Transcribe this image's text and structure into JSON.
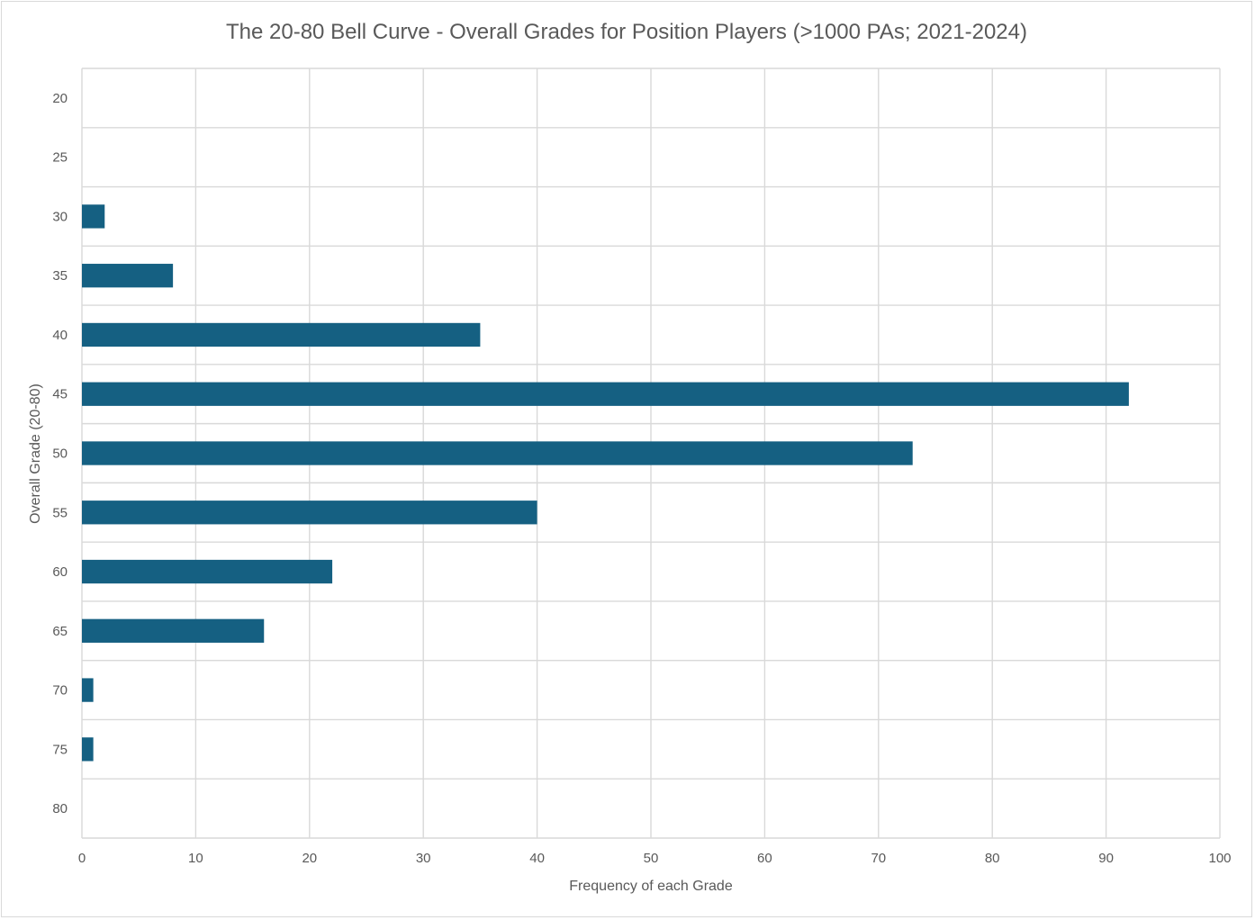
{
  "chart_data": {
    "type": "bar",
    "orientation": "horizontal",
    "title": "The 20-80 Bell Curve - Overall Grades for Position Players (>1000 PAs; 2021-2024)",
    "xlabel": "Frequency of each Grade",
    "ylabel": "Overall Grade (20-80)",
    "categories": [
      "20",
      "25",
      "30",
      "35",
      "40",
      "45",
      "50",
      "55",
      "60",
      "65",
      "70",
      "75",
      "80"
    ],
    "values": [
      0,
      0,
      2,
      8,
      35,
      92,
      73,
      40,
      22,
      16,
      1,
      1,
      0
    ],
    "xlim": [
      0,
      100
    ],
    "xticks": [
      "0",
      "10",
      "20",
      "30",
      "40",
      "50",
      "60",
      "70",
      "80",
      "90",
      "100"
    ],
    "grid": true,
    "legend": "none",
    "bar_color": "#156082"
  }
}
